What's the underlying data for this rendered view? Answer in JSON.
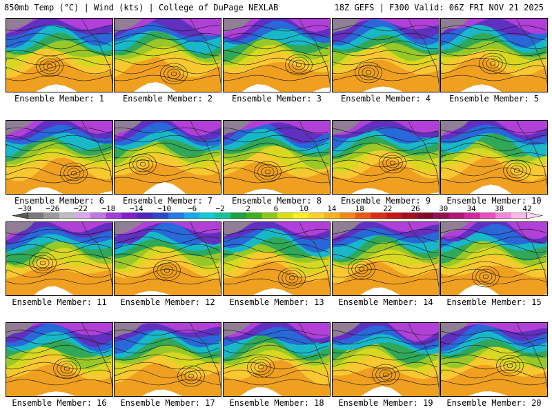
{
  "header": {
    "left": "850mb Temp (°C) | Wind (kts) | College of DuPage NEXLAB",
    "right": "18Z GEFS | F300 Valid: 06Z FRI NOV 21 2025"
  },
  "member_prefix": "Ensemble Member: ",
  "members": [
    1,
    2,
    3,
    4,
    5,
    6,
    7,
    8,
    9,
    10,
    11,
    12,
    13,
    14,
    15,
    16,
    17,
    18,
    19,
    20
  ],
  "colorbar": {
    "ticks": [
      "-30",
      "-26",
      "-22",
      "-18",
      "-14",
      "-10",
      "-6",
      "-2",
      "2",
      "6",
      "10",
      "14",
      "18",
      "22",
      "26",
      "30",
      "34",
      "38",
      "42"
    ],
    "colors": [
      "#5a5a5a",
      "#7a7a7a",
      "#9a9a9a",
      "#bcbcbc",
      "#d8a8e8",
      "#c078e0",
      "#a040d8",
      "#8020c8",
      "#5028b8",
      "#2c48c8",
      "#2878e0",
      "#18a8e8",
      "#18c8d0",
      "#18c098",
      "#20a040",
      "#40b020",
      "#90c818",
      "#d8e010",
      "#f8f020",
      "#f8d028",
      "#f8b020",
      "#f08818",
      "#e85818",
      "#d83018",
      "#c01818",
      "#a01020",
      "#800c28",
      "#901050",
      "#b01878",
      "#d028a0",
      "#e850c0",
      "#f088d8",
      "#f8b8e8",
      "#f8d8f0"
    ]
  }
}
